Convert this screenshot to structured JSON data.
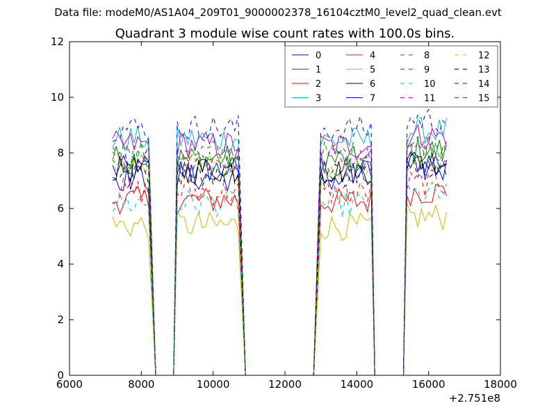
{
  "chart_data": {
    "type": "line",
    "suptitle": "Data file: modeM0/AS1A04_209T01_9000002378_16104cztM0_level2_quad_clean.evt",
    "title": "Quadrant 3 module wise count rates with 100.0s bins.",
    "xlabel": "",
    "ylabel": "",
    "x_offset_label": "+2.751e8",
    "xlim": [
      6000,
      18000
    ],
    "ylim": [
      0,
      12
    ],
    "xticks": [
      6000,
      8000,
      10000,
      12000,
      14000,
      16000,
      18000
    ],
    "yticks": [
      0,
      2,
      4,
      6,
      8,
      10,
      12
    ],
    "xtick_labels": [
      "6000",
      "8000",
      "10000",
      "12000",
      "14000",
      "16000",
      "18000"
    ],
    "ytick_labels": [
      "0",
      "2",
      "4",
      "6",
      "8",
      "10",
      "12"
    ],
    "grid": false,
    "legend_position": "top-right",
    "segments": [
      {
        "start": 7200,
        "end": 8200,
        "drop_to_zero": 8400
      },
      {
        "start": 9000,
        "end": 10700,
        "rise_from_zero": 8900,
        "drop_to_zero": 10900
      },
      {
        "start": 13000,
        "end": 14400,
        "rise_from_zero": 12800,
        "drop_to_zero": 14500
      },
      {
        "start": 15400,
        "end": 16500,
        "rise_from_zero": 15300
      }
    ],
    "series": [
      {
        "name": "0",
        "level": 7.4,
        "color": "#0000ff",
        "dash": "solid"
      },
      {
        "name": "1",
        "level": 7.8,
        "color": "#008000",
        "dash": "solid"
      },
      {
        "name": "2",
        "level": 6.3,
        "color": "#ff0000",
        "dash": "solid"
      },
      {
        "name": "3",
        "level": 8.5,
        "color": "#00bfbf",
        "dash": "solid"
      },
      {
        "name": "4",
        "level": 8.3,
        "color": "#bf00bf",
        "dash": "solid"
      },
      {
        "name": "5",
        "level": 5.4,
        "color": "#bfbf00",
        "dash": "solid"
      },
      {
        "name": "6",
        "level": 7.4,
        "color": "#000000",
        "dash": "solid"
      },
      {
        "name": "7",
        "level": 7.1,
        "color": "#0000ff",
        "dash": "solid"
      },
      {
        "name": "8",
        "level": 8.0,
        "color": "#008000",
        "dash": "dashed"
      },
      {
        "name": "9",
        "level": 6.6,
        "color": "#ff0000",
        "dash": "dashed"
      },
      {
        "name": "10",
        "level": 6.2,
        "color": "#00bfbf",
        "dash": "dashed"
      },
      {
        "name": "11",
        "level": 7.8,
        "color": "#bf00bf",
        "dash": "dashed"
      },
      {
        "name": "12",
        "level": 7.5,
        "color": "#bfbf00",
        "dash": "dashed"
      },
      {
        "name": "13",
        "level": 7.3,
        "color": "#000000",
        "dash": "dashed"
      },
      {
        "name": "14",
        "level": 8.9,
        "color": "#0000ff",
        "dash": "dashed"
      },
      {
        "name": "15",
        "level": 7.6,
        "color": "#008000",
        "dash": "dashed"
      }
    ]
  }
}
